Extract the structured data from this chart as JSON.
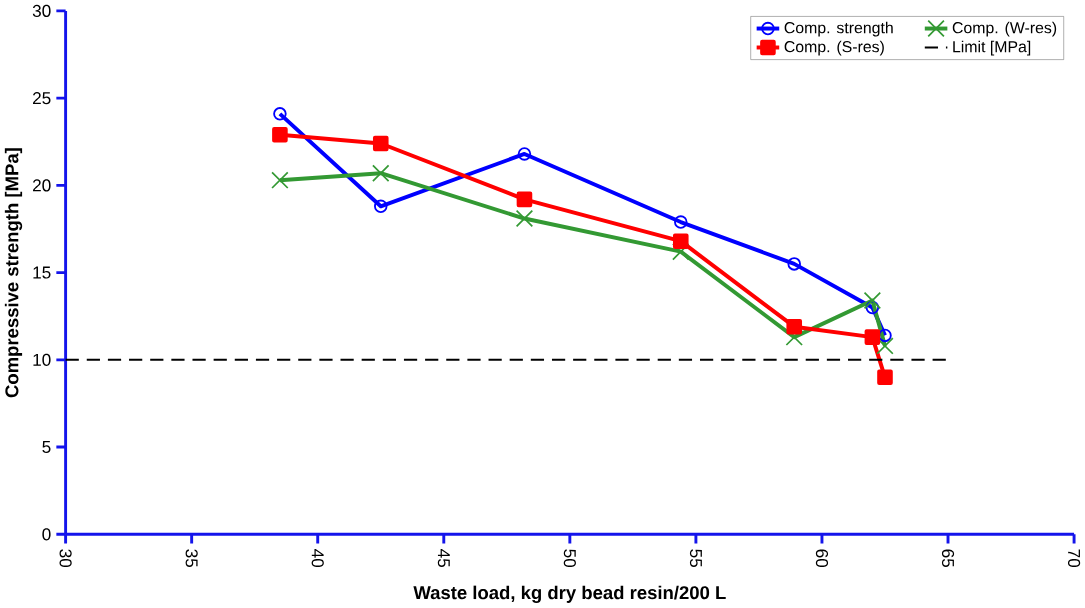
{
  "chart_data": {
    "type": "line",
    "xlabel": "Waste load, kg dry bead resin/200 L",
    "ylabel": "Compressive strength [MPa]",
    "xlim": [
      30,
      70
    ],
    "xticks": [
      30,
      35,
      40,
      45,
      50,
      55,
      60,
      65,
      70
    ],
    "ylim": [
      0,
      30
    ],
    "yticks": [
      0,
      5,
      10,
      15,
      20,
      25,
      30
    ],
    "grid": false,
    "legend": "top right",
    "series": [
      {
        "name": "Comp. strength",
        "color": "#0000ff",
        "marker": "circle",
        "x": [
          38.5,
          42.5,
          48.2,
          54.4,
          58.9,
          62.0,
          62.5
        ],
        "values": [
          24.1,
          18.8,
          21.8,
          17.9,
          15.5,
          13.0,
          11.4
        ]
      },
      {
        "name": "Comp. (W-res)",
        "color": "#339933",
        "marker": "cross",
        "x": [
          38.5,
          42.5,
          48.2,
          54.4,
          58.9,
          62.0,
          62.5
        ],
        "values": [
          20.3,
          20.7,
          18.1,
          16.2,
          11.3,
          13.4,
          10.8
        ]
      },
      {
        "name": "Comp. (S-res)",
        "color": "#ff0000",
        "marker": "square",
        "x": [
          38.5,
          42.5,
          48.2,
          54.4,
          58.9,
          62.0,
          62.5
        ],
        "values": [
          22.9,
          22.4,
          19.2,
          16.8,
          11.9,
          11.3,
          9.0
        ]
      },
      {
        "name": "Limit [MPa]",
        "color": "#000000",
        "marker": "none",
        "line_style": "dashed",
        "x": [
          30,
          65
        ],
        "values": [
          10,
          10
        ]
      }
    ]
  }
}
